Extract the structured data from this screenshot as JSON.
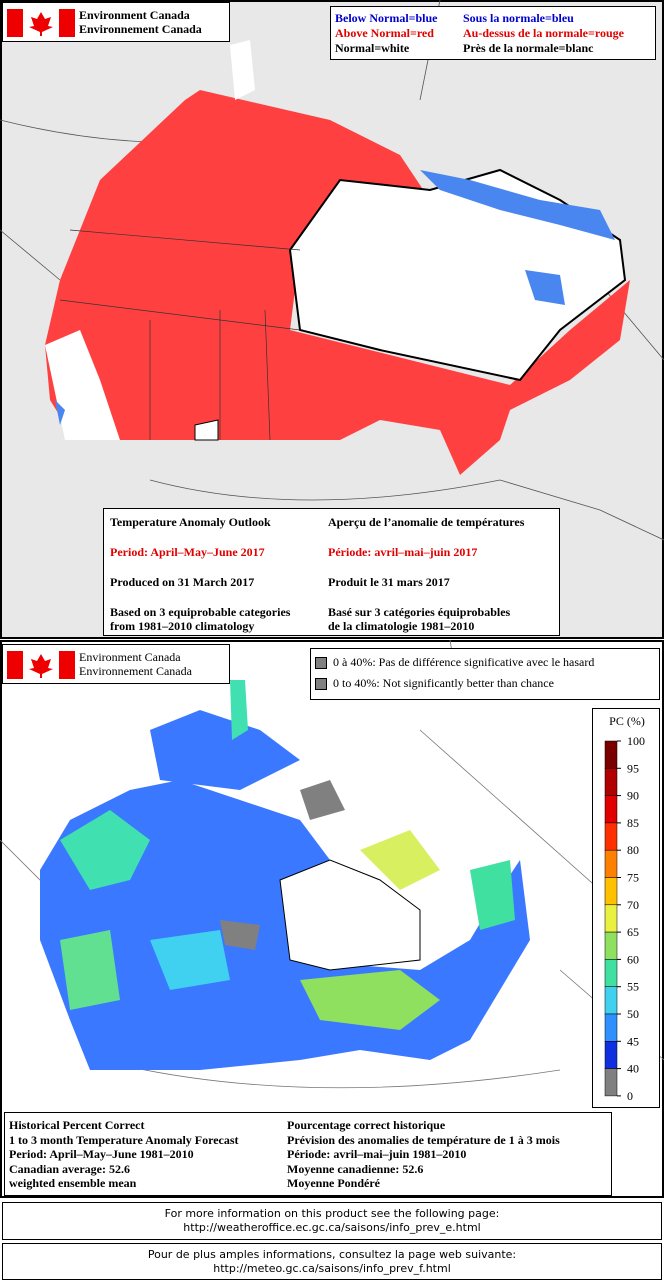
{
  "outlook_panel": {
    "logo": [
      "Environment Canada",
      "Environnement Canada"
    ],
    "legend": [
      {
        "en": "Below Normal=blue",
        "fr": "Sous la normale=bleu",
        "color": "#0000cc"
      },
      {
        "en": "Above Normal=red",
        "fr": "Au-dessus de la normale=rouge",
        "color": "#e00000"
      },
      {
        "en": "Normal=white",
        "fr": "Près de la normale=blanc",
        "color": "#000000"
      }
    ],
    "info": {
      "en": [
        "Temperature Anomaly Outlook",
        "Period: April–May–June 2017",
        "Produced on 31 March 2017",
        "Based on 3 equiprobable categories\nfrom 1981–2010 climatology"
      ],
      "fr": [
        "Aperçu de l’anomalie de températures",
        "Période: avril–mai–juin 2017",
        "Produit le 31 mars 2017",
        "Basé sur 3 catégories équiprobables\nde la climatologie 1981–2010"
      ]
    }
  },
  "skill_panel": {
    "logo": [
      "Environment Canada",
      "Environnement Canada"
    ],
    "legend": [
      "0 à 40%: Pas de différence significative avec le hasard",
      "0 to 40%: Not significantly better than chance"
    ],
    "colorbar": {
      "title": "PC (%)",
      "ticks": [
        100,
        95,
        90,
        85,
        80,
        75,
        70,
        65,
        60,
        55,
        50,
        45,
        40,
        0
      ],
      "colors": [
        "#7a0000",
        "#b00000",
        "#e00000",
        "#ff3000",
        "#ff8000",
        "#ffc000",
        "#e8f040",
        "#90e060",
        "#40e0a0",
        "#40d0f0",
        "#3090ff",
        "#1030e0",
        "#808080"
      ]
    },
    "info": {
      "en": [
        "Historical Percent Correct",
        "1 to 3 month Temperature Anomaly Forecast",
        "Period: April–May–June 1981–2010",
        "Canadian average: 52.6",
        "weighted ensemble mean"
      ],
      "fr": [
        "Pourcentage correct historique",
        "Prévision des anomalies de température de 1 à 3 mois",
        "Période: avril–mai–juin 1981–2010",
        "Moyenne canadienne: 52.6",
        "Moyenne Pondéré"
      ]
    }
  },
  "footer_en": [
    "For more information on this product see the following page:",
    "http://weatheroffice.ec.gc.ca/saisons/info_prev_e.html"
  ],
  "footer_fr": [
    "Pour de plus amples informations, consultez la page web suivante:",
    "http://meteo.gc.ca/saisons/info_prev_f.html"
  ]
}
